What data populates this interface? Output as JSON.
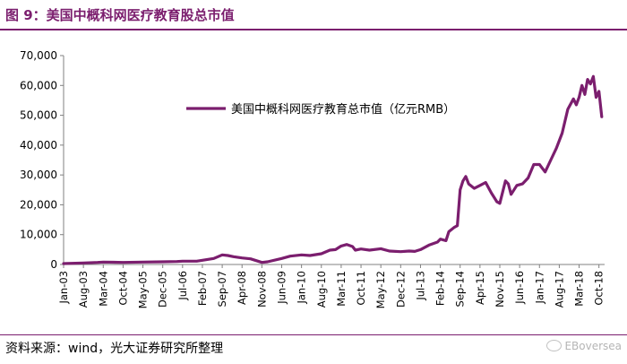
{
  "header": {
    "title": "图 9：美国中概科网医疗教育股总市值"
  },
  "footer": {
    "source": "资料来源：wind，光大证券研究所整理",
    "watermark": "EBoversea"
  },
  "colors": {
    "accent": "#7B1E6E",
    "line": "#7B1E6E",
    "axis": "#808080"
  },
  "chart_data": {
    "type": "line",
    "title": "",
    "xlabel": "",
    "ylabel": "",
    "ylim": [
      0,
      70000
    ],
    "grid": false,
    "legend_position": "top-center",
    "y_ticks": [
      "0",
      "10,000",
      "20,000",
      "30,000",
      "40,000",
      "50,000",
      "60,000",
      "70,000"
    ],
    "x_tick_labels": [
      "Jan-03",
      "Aug-03",
      "Mar-04",
      "Oct-04",
      "May-05",
      "Dec-05",
      "Jul-06",
      "Feb-07",
      "Sep-07",
      "Apr-08",
      "Nov-08",
      "Jun-09",
      "Jan-10",
      "Aug-10",
      "Mar-11",
      "Oct-11",
      "May-12",
      "Dec-12",
      "Jul-13",
      "Feb-14",
      "Sep-14",
      "Apr-15",
      "Nov-15",
      "Jun-16",
      "Jan-17",
      "Aug-17",
      "Mar-18",
      "Oct-18"
    ],
    "series": [
      {
        "name": "美国中概科网医疗教育总市值（亿元RMB）",
        "points": [
          [
            "2003-01",
            300
          ],
          [
            "2003-08",
            500
          ],
          [
            "2004-01",
            700
          ],
          [
            "2004-03",
            800
          ],
          [
            "2004-10",
            700
          ],
          [
            "2005-05",
            800
          ],
          [
            "2005-12",
            900
          ],
          [
            "2006-05",
            1000
          ],
          [
            "2006-07",
            1100
          ],
          [
            "2006-12",
            1100
          ],
          [
            "2007-02",
            1400
          ],
          [
            "2007-06",
            2000
          ],
          [
            "2007-09",
            3200
          ],
          [
            "2007-11",
            3000
          ],
          [
            "2008-01",
            2600
          ],
          [
            "2008-04",
            2200
          ],
          [
            "2008-07",
            1900
          ],
          [
            "2008-11",
            700
          ],
          [
            "2009-01",
            900
          ],
          [
            "2009-06",
            2000
          ],
          [
            "2009-09",
            2800
          ],
          [
            "2010-01",
            3200
          ],
          [
            "2010-04",
            3000
          ],
          [
            "2010-08",
            3600
          ],
          [
            "2010-11",
            4800
          ],
          [
            "2011-01",
            5000
          ],
          [
            "2011-03",
            6200
          ],
          [
            "2011-05",
            6700
          ],
          [
            "2011-07",
            6000
          ],
          [
            "2011-08",
            4800
          ],
          [
            "2011-10",
            5200
          ],
          [
            "2012-01",
            4800
          ],
          [
            "2012-05",
            5300
          ],
          [
            "2012-08",
            4500
          ],
          [
            "2012-12",
            4300
          ],
          [
            "2013-03",
            4500
          ],
          [
            "2013-05",
            4400
          ],
          [
            "2013-07",
            5000
          ],
          [
            "2013-10",
            6500
          ],
          [
            "2014-01",
            7500
          ],
          [
            "2014-02",
            8500
          ],
          [
            "2014-04",
            8000
          ],
          [
            "2014-05",
            11000
          ],
          [
            "2014-07",
            12500
          ],
          [
            "2014-08",
            13000
          ],
          [
            "2014-09",
            25000
          ],
          [
            "2014-10",
            28000
          ],
          [
            "2014-11",
            29500
          ],
          [
            "2014-12",
            27000
          ],
          [
            "2015-02",
            25500
          ],
          [
            "2015-04",
            26500
          ],
          [
            "2015-06",
            27500
          ],
          [
            "2015-08",
            24000
          ],
          [
            "2015-10",
            21000
          ],
          [
            "2015-11",
            20500
          ],
          [
            "2016-01",
            28000
          ],
          [
            "2016-02",
            27000
          ],
          [
            "2016-03",
            23500
          ],
          [
            "2016-05",
            26500
          ],
          [
            "2016-07",
            27000
          ],
          [
            "2016-09",
            29000
          ],
          [
            "2016-11",
            33500
          ],
          [
            "2017-01",
            33500
          ],
          [
            "2017-03",
            31000
          ],
          [
            "2017-05",
            35000
          ],
          [
            "2017-07",
            39000
          ],
          [
            "2017-09",
            44000
          ],
          [
            "2017-11",
            52000
          ],
          [
            "2018-01",
            55500
          ],
          [
            "2018-02",
            53500
          ],
          [
            "2018-03",
            56000
          ],
          [
            "2018-04",
            60000
          ],
          [
            "2018-05",
            57000
          ],
          [
            "2018-06",
            62000
          ],
          [
            "2018-07",
            60500
          ],
          [
            "2018-08",
            63000
          ],
          [
            "2018-09",
            56000
          ],
          [
            "2018-10",
            58000
          ],
          [
            "2018-11",
            49500
          ]
        ]
      }
    ]
  }
}
